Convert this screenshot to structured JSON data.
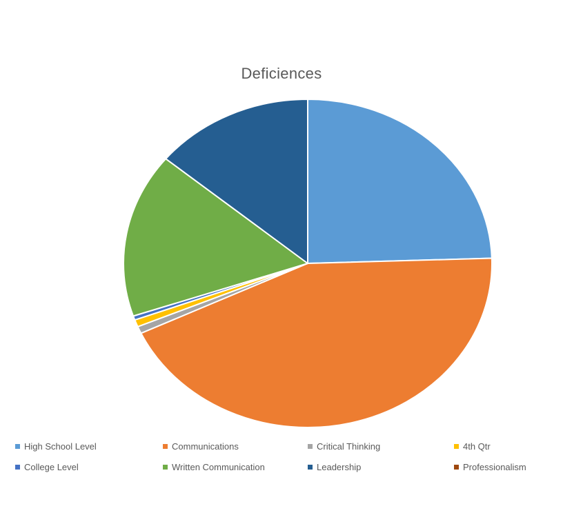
{
  "chart_data": {
    "type": "pie",
    "title": "Deficiences",
    "legend_position": "bottom",
    "slices": [
      {
        "label": "High School Level",
        "value": 24.5,
        "color": "#5B9BD5"
      },
      {
        "label": "Communications",
        "value": 43.5,
        "color": "#ED7D31"
      },
      {
        "label": "Critical Thinking",
        "value": 0.7,
        "color": "#A5A5A5"
      },
      {
        "label": "4th Qtr",
        "value": 0.7,
        "color": "#FFC000"
      },
      {
        "label": "College Level",
        "value": 0.4,
        "color": "#4472C4"
      },
      {
        "label": "Written Communication",
        "value": 16.2,
        "color": "#70AD47"
      },
      {
        "label": "Leadership",
        "value": 14.0,
        "color": "#255E91"
      },
      {
        "label": "Professionalism",
        "value": 0.0,
        "color": "#9E480E"
      }
    ]
  }
}
